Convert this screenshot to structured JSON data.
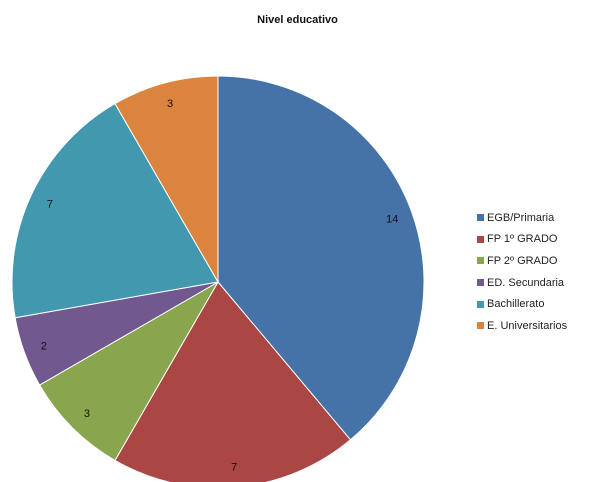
{
  "chart_data": {
    "type": "pie",
    "title": "Nivel educativo",
    "legend_position": "right",
    "categories": [
      "EGB/Primaria",
      "FP 1º GRADO",
      "FP 2º GRADO",
      "ED. Secundaria",
      "Bachillerato",
      "E. Universitarios"
    ],
    "values": [
      14,
      7,
      3,
      2,
      7,
      3
    ],
    "colors": [
      "#4572a7",
      "#aa4643",
      "#89a54e",
      "#71588f",
      "#4198af",
      "#db843d"
    ]
  }
}
